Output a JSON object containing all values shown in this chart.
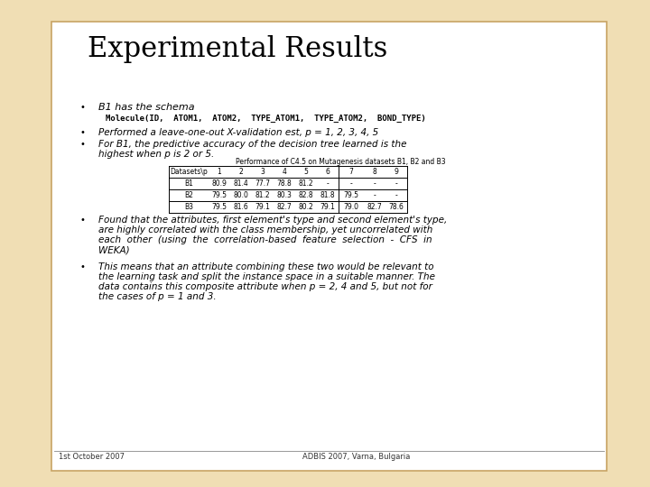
{
  "title": "Experimental Results",
  "bg_outer": "#f0deb4",
  "bg_slide": "#ffffff",
  "border_color": "#c8a464",
  "title_color": "#000000",
  "title_fontsize": 22,
  "footer_left": "1st October 2007",
  "footer_right": "ADBIS 2007, Varna, Bulgaria",
  "bullet1": "B1 has the schema",
  "schema_line": "Molecule(ID,  ATOM1,  ATOM2,  TYPE_ATOM1,  TYPE_ATOM2,  BOND_TYPE)",
  "bullet2": "Performed a leave-one-out X-validation est, p = 1, 2, 3, 4, 5",
  "bullet3_line1": "For B1, the predictive accuracy of the decision tree learned is the",
  "bullet3_line2": "highest when p is 2 or 5.",
  "table_title": "Performance of C4.5 on Mutagenesis datasets B1, B2 and B3",
  "table_headers": [
    "Datasets\\p",
    "1",
    "2",
    "3",
    "4",
    "5",
    "6",
    "7",
    "8",
    "9"
  ],
  "table_rows": [
    [
      "B1",
      "80.9",
      "81.4",
      "77.7",
      "78.8",
      "81.2",
      "-",
      "-",
      "-",
      "-"
    ],
    [
      "B2",
      "79.5",
      "80.0",
      "81.2",
      "80.3",
      "82.8",
      "81.8",
      "79.5",
      "-",
      "-"
    ],
    [
      "B3",
      "79.5",
      "81.6",
      "79.1",
      "82.7",
      "80.2",
      "79.1",
      "79.0",
      "82.7",
      "78.6"
    ]
  ],
  "bullet4_lines": [
    "Found that the attributes, first element's type and second element's type,",
    "are highly correlated with the class membership, yet uncorrelated with",
    "each  other  (using  the  correlation-based  feature  selection  -  CFS  in",
    "WEKA)"
  ],
  "bullet5_lines": [
    "This means that an attribute combining these two would be relevant to",
    "the learning task and split the instance space in a suitable manner. The",
    "data contains this composite attribute when p = 2, 4 and 5, but not for",
    "the cases of p = 1 and 3."
  ]
}
